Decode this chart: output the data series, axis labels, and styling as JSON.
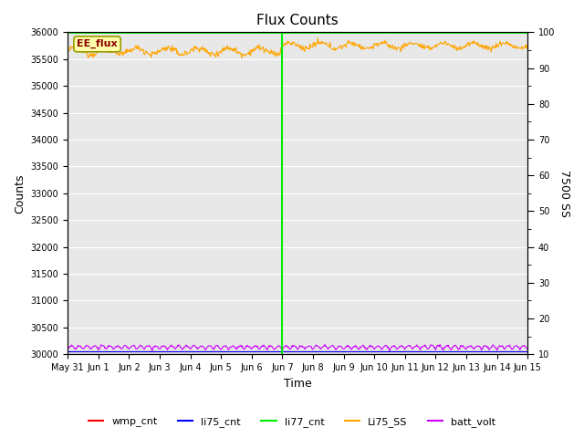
{
  "title": "Flux Counts",
  "xlabel": "Time",
  "ylabel_left": "Counts",
  "ylabel_right": "7500 SS",
  "fig_bg_color": "#ffffff",
  "plot_bg_color": "#e8e8e8",
  "ylim_left": [
    30000,
    36000
  ],
  "ylim_right": [
    10,
    100
  ],
  "yticks_left": [
    30000,
    30500,
    31000,
    31500,
    32000,
    32500,
    33000,
    33500,
    34000,
    34500,
    35000,
    35500,
    36000
  ],
  "yticks_right": [
    10,
    20,
    30,
    40,
    50,
    60,
    70,
    80,
    90,
    100
  ],
  "annotation_text": "EE_flux",
  "vline_day": 7,
  "vline_color": "#00ee00",
  "li77_line_color": "#00ee00",
  "li75_SS_color": "#ffa500",
  "batt_volt_color": "#cc00ff",
  "wmp_cnt_color": "#ff0000",
  "li75_cnt_color": "#0000ff",
  "legend_labels": [
    "wmp_cnt",
    "li75_cnt",
    "li77_cnt",
    "Li75_SS",
    "batt_volt"
  ],
  "legend_colors": [
    "#ff0000",
    "#0000ff",
    "#00ee00",
    "#ffa500",
    "#cc00ff"
  ]
}
